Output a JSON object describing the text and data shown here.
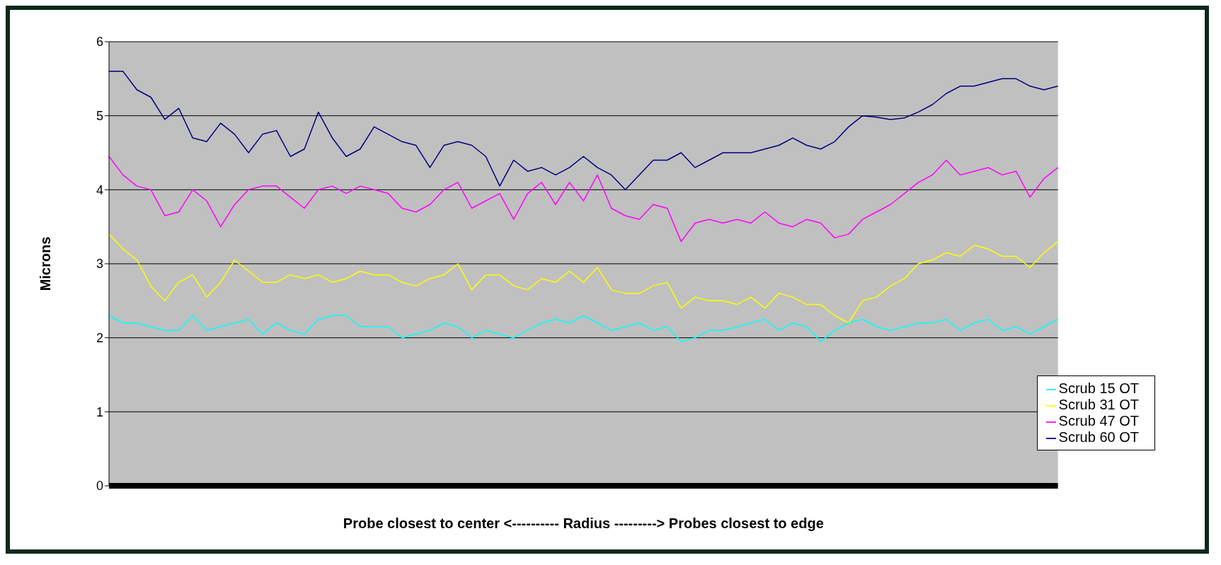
{
  "chart_data": {
    "type": "line",
    "xlabel": "Probe closest to center <---------- Radius ---------> Probes closest to edge",
    "ylabel": "Microns",
    "categories": [
      null,
      null,
      null,
      null,
      null,
      null,
      null,
      null,
      null,
      null,
      null,
      null,
      null,
      null,
      null,
      null,
      null,
      null,
      null,
      null,
      null,
      null,
      null,
      null,
      null,
      null,
      null,
      null,
      null,
      null,
      null,
      null,
      null,
      null,
      null,
      null,
      null,
      null,
      null,
      null,
      null,
      null,
      null,
      null,
      null,
      null,
      null,
      null,
      null,
      null,
      null,
      null,
      null,
      null,
      null,
      null,
      null,
      null,
      null,
      null,
      null,
      null,
      null,
      null,
      null,
      null,
      null,
      null,
      null
    ],
    "series": [
      {
        "name": "Scrub 60 OT",
        "color": "#000080",
        "values": [
          5.6,
          5.6,
          5.35,
          5.25,
          4.95,
          5.1,
          4.7,
          4.65,
          4.9,
          4.75,
          4.5,
          4.75,
          4.8,
          4.45,
          4.55,
          5.05,
          4.7,
          4.45,
          4.55,
          4.85,
          4.75,
          4.65,
          4.6,
          4.3,
          4.6,
          4.65,
          4.6,
          4.45,
          4.05,
          4.4,
          4.25,
          4.3,
          4.2,
          4.3,
          4.45,
          4.3,
          4.2,
          4.0,
          4.2,
          4.4,
          4.4,
          4.5,
          4.3,
          4.4,
          4.5,
          4.5,
          4.5,
          4.55,
          4.6,
          4.7,
          4.6,
          4.55,
          4.65,
          4.85,
          5.0,
          4.98,
          4.95,
          4.97,
          5.05,
          5.15,
          5.3,
          5.4,
          5.4,
          5.45,
          5.5,
          5.5,
          5.4,
          5.35,
          5.4
        ]
      },
      {
        "name": "Scrub 47 OT",
        "color": "#ff00ff",
        "values": [
          4.45,
          4.2,
          4.05,
          4.0,
          3.65,
          3.7,
          4.0,
          3.85,
          3.5,
          3.8,
          4.0,
          4.05,
          4.05,
          3.9,
          3.75,
          4.0,
          4.05,
          3.95,
          4.05,
          4.0,
          3.95,
          3.75,
          3.7,
          3.8,
          4.0,
          4.1,
          3.75,
          3.85,
          3.95,
          3.6,
          3.95,
          4.1,
          3.8,
          4.1,
          3.85,
          4.2,
          3.75,
          3.65,
          3.6,
          3.8,
          3.75,
          3.3,
          3.55,
          3.6,
          3.55,
          3.6,
          3.55,
          3.7,
          3.55,
          3.5,
          3.6,
          3.55,
          3.35,
          3.4,
          3.6,
          3.7,
          3.8,
          3.95,
          4.1,
          4.2,
          4.4,
          4.2,
          4.25,
          4.3,
          4.2,
          4.25,
          3.9,
          4.15,
          4.3
        ]
      },
      {
        "name": "Scrub 31 OT",
        "color": "#ffff00",
        "values": [
          3.4,
          3.2,
          3.05,
          2.7,
          2.5,
          2.75,
          2.85,
          2.55,
          2.75,
          3.05,
          2.9,
          2.75,
          2.75,
          2.85,
          2.8,
          2.85,
          2.75,
          2.8,
          2.9,
          2.85,
          2.85,
          2.75,
          2.7,
          2.8,
          2.85,
          3.0,
          2.65,
          2.85,
          2.85,
          2.7,
          2.65,
          2.8,
          2.75,
          2.9,
          2.75,
          2.95,
          2.65,
          2.6,
          2.6,
          2.7,
          2.75,
          2.4,
          2.55,
          2.5,
          2.5,
          2.45,
          2.55,
          2.4,
          2.6,
          2.55,
          2.45,
          2.45,
          2.3,
          2.2,
          2.5,
          2.55,
          2.7,
          2.8,
          3.0,
          3.05,
          3.15,
          3.1,
          3.25,
          3.2,
          3.1,
          3.1,
          2.95,
          3.15,
          3.3
        ]
      },
      {
        "name": "Scrub 15 OT",
        "color": "#00ffff",
        "values": [
          2.3,
          2.2,
          2.2,
          2.15,
          2.1,
          2.1,
          2.3,
          2.1,
          2.15,
          2.2,
          2.25,
          2.05,
          2.2,
          2.1,
          2.05,
          2.25,
          2.3,
          2.3,
          2.15,
          2.15,
          2.15,
          2.0,
          2.05,
          2.1,
          2.2,
          2.15,
          2.0,
          2.1,
          2.05,
          2.0,
          2.1,
          2.2,
          2.25,
          2.2,
          2.3,
          2.2,
          2.1,
          2.15,
          2.2,
          2.1,
          2.15,
          1.95,
          2.0,
          2.1,
          2.1,
          2.15,
          2.2,
          2.25,
          2.1,
          2.2,
          2.15,
          1.95,
          2.1,
          2.2,
          2.25,
          2.15,
          2.1,
          2.15,
          2.2,
          2.2,
          2.25,
          2.1,
          2.2,
          2.25,
          2.1,
          2.15,
          2.05,
          2.15,
          2.25
        ]
      }
    ],
    "ylim": [
      0,
      6
    ],
    "yticks": [
      0,
      1,
      2,
      3,
      4,
      5,
      6
    ],
    "grid": "y",
    "legend": "bottom right",
    "tick_labels": "y",
    "marker": "none",
    "line_style": "solid"
  }
}
